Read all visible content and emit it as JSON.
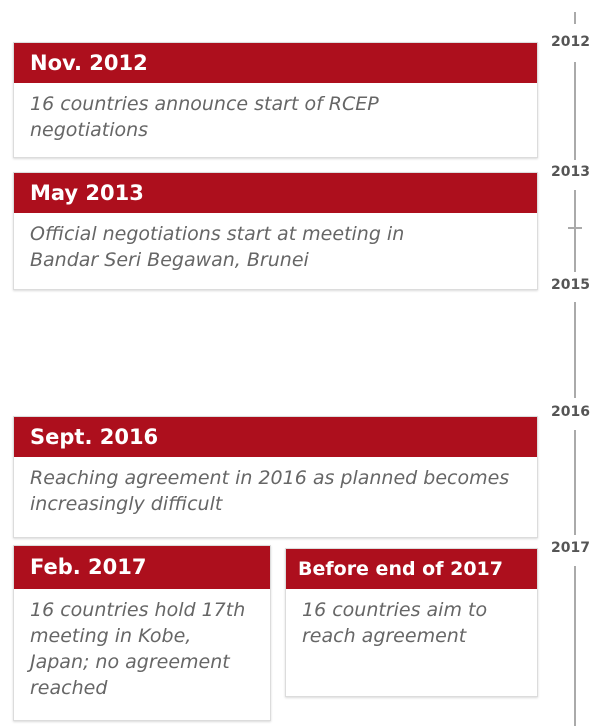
{
  "years": [
    "2012",
    "2013",
    "2015",
    "2016",
    "2017"
  ],
  "events": [
    {
      "date": "Nov. 2012",
      "description": "16 countries announce start of RCEP negotiations"
    },
    {
      "date": "May 2013",
      "description": "Official negotiations start at meeting in Bandar Seri Begawan, Brunei"
    },
    {
      "date": "Sept. 2016",
      "description": "Reaching agreement in 2016 as planned becomes increasingly difficult"
    },
    {
      "date": "Feb. 2017",
      "description": "16 countries hold 17th meeting in Kobe, Japan; no agreement reached"
    },
    {
      "date": "Before end of 2017",
      "description": "16 countries aim to reach agreement"
    }
  ]
}
